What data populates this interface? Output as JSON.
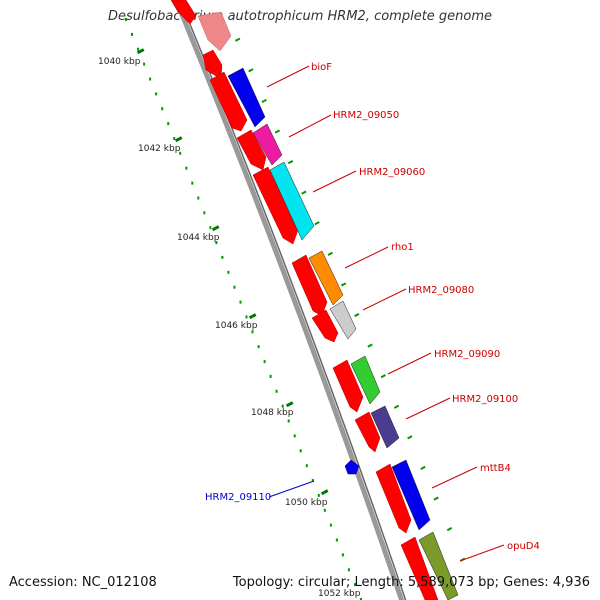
{
  "title": "Desulfobacterium autotrophicum HRM2, complete genome",
  "footer": {
    "accession": "Accession: NC_012108",
    "summary": "Topology: circular; Length: 5,589,073 bp; Genes: 4,936"
  },
  "ruler_labels": [
    "1040 kbp",
    "1042 kbp",
    "1044 kbp",
    "1046 kbp",
    "1048 kbp",
    "1050 kbp",
    "1052 kbp"
  ],
  "gene_labels": [
    {
      "name": "bioF",
      "color": "#cc0000"
    },
    {
      "name": "HRM2_09050",
      "color": "#cc0000"
    },
    {
      "name": "HRM2_09060",
      "color": "#cc0000"
    },
    {
      "name": "rho1",
      "color": "#cc0000"
    },
    {
      "name": "HRM2_09080",
      "color": "#cc0000"
    },
    {
      "name": "HRM2_09090",
      "color": "#cc0000"
    },
    {
      "name": "HRM2_09100",
      "color": "#cc0000"
    },
    {
      "name": "mttB4",
      "color": "#cc0000"
    },
    {
      "name": "opuD4",
      "color": "#cc0000"
    },
    {
      "name": "HRM2_09110",
      "color": "#0000cc"
    }
  ],
  "colors": {
    "cds": "#ff0000",
    "backbone": "#888888",
    "tick_major": "#007700",
    "tick_minor": "#009900",
    "bioF": "#0000ee",
    "HRM2_09050": "#ee1aa0",
    "HRM2_09060": "#00e5ee",
    "rho1": "#ff8c00",
    "HRM2_09080": "#cccccc",
    "HRM2_09090": "#33cc33",
    "HRM2_09100": "#4a3d8f",
    "mttB4": "#0000ee",
    "opuD4": "#7a9a2a"
  }
}
